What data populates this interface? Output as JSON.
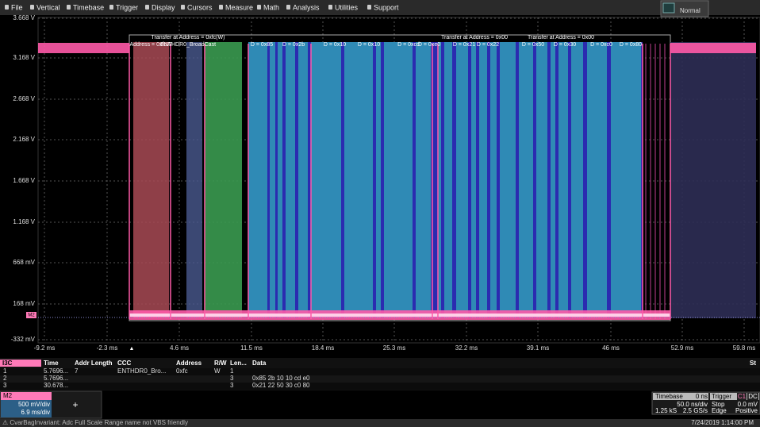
{
  "menu": [
    "File",
    "Vertical",
    "Timebase",
    "Trigger",
    "Display",
    "Cursors",
    "Measure",
    "Math",
    "Analysis",
    "Utilities",
    "Support"
  ],
  "trigger_mode": "Normal",
  "waveform": {
    "y_labels": [
      "3.668 V",
      "3.168 V",
      "2.668 V",
      "2.168 V",
      "1.668 V",
      "1.168 V",
      "668 mV",
      "168 mV",
      "-332 mV"
    ],
    "x_labels": [
      "-9.2 ms",
      "-2.3 ms",
      "4.6 ms",
      "11.5 ms",
      "18.4 ms",
      "25.3 ms",
      "32.2 ms",
      "39.1 ms",
      "46 ms",
      "52.9 ms",
      "59.8 ms"
    ],
    "marker": "M2",
    "transfers": [
      "Transfer at Address = 0xfc(W)",
      "Transfer at Address = 0x00",
      "Transfer at Address = 0x00"
    ],
    "decodes": [
      "Address = 0xfcW",
      "ENTHDR0_BroadCast",
      "D = 0x85",
      "D = 0x2b",
      "D = 0x10",
      "D = 0x10",
      "D = 0xcd",
      "D = 0xe0",
      "D = 0x21",
      "D = 0x22",
      "D = 0x50",
      "D = 0x30",
      "D = 0xc0",
      "D = 0x80"
    ]
  },
  "table": {
    "title": "I3C",
    "columns": [
      "Time",
      "Addr Length",
      "CCC",
      "Address",
      "R/W",
      "Len...",
      "Data",
      "St"
    ],
    "rows": [
      [
        "1",
        "5.7696...",
        "7",
        "ENTHDR0_Bro...",
        "0xfc",
        "W",
        "1",
        ""
      ],
      [
        "2",
        "5.7696...",
        "",
        "",
        "",
        "",
        "3",
        "0x85 2b 10 10 cd e0"
      ],
      [
        "3",
        "30.678...",
        "",
        "",
        "",
        "",
        "3",
        "0x21 22 50 30 c0 80"
      ]
    ]
  },
  "channel": {
    "name": "M2",
    "vdiv": "500 mV/div",
    "tdiv": "6.9 ms/div",
    "add": "+"
  },
  "timebase": {
    "title": "Timebase",
    "offset": "0 ns",
    "trigger": "Trigger",
    "source": "C1",
    "coupling": "DC",
    "tdiv": "50.0 ns/div",
    "state": "Stop",
    "level": "0.0 mV",
    "samples": "1.25 kS",
    "rate": "2.5 GS/s",
    "type": "Edge",
    "slope": "Positive"
  },
  "status": {
    "message": "⚠ CvarBagInvariant: Adc Full Scale Range name not VBS friendly",
    "datetime": "7/24/2019 1:14:00 PM"
  }
}
